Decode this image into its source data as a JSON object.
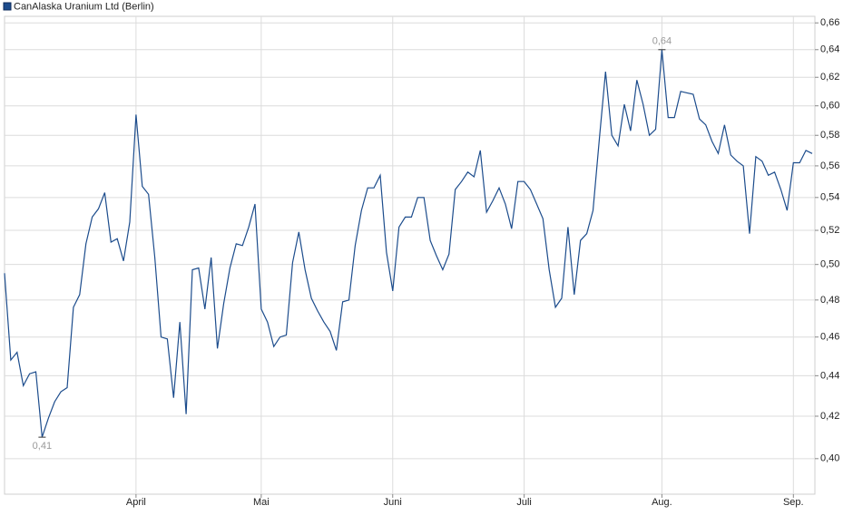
{
  "chart_data": {
    "type": "line",
    "series": [
      {
        "name": "CanAlaska Uranium Ltd (Berlin)",
        "color": "#1c4c8c",
        "values": [
          0.495,
          0.448,
          0.452,
          0.435,
          0.441,
          0.442,
          0.41,
          0.419,
          0.427,
          0.432,
          0.434,
          0.476,
          0.483,
          0.512,
          0.528,
          0.533,
          0.543,
          0.513,
          0.515,
          0.502,
          0.525,
          0.594,
          0.547,
          0.542,
          0.504,
          0.46,
          0.459,
          0.429,
          0.468,
          0.421,
          0.497,
          0.498,
          0.475,
          0.504,
          0.454,
          0.478,
          0.498,
          0.512,
          0.511,
          0.522,
          0.536,
          0.475,
          0.468,
          0.455,
          0.46,
          0.461,
          0.501,
          0.519,
          0.497,
          0.481,
          0.474,
          0.468,
          0.463,
          0.453,
          0.479,
          0.48,
          0.511,
          0.532,
          0.546,
          0.546,
          0.554,
          0.507,
          0.485,
          0.522,
          0.528,
          0.528,
          0.54,
          0.54,
          0.514,
          0.505,
          0.497,
          0.506,
          0.545,
          0.55,
          0.556,
          0.553,
          0.57,
          0.531,
          0.538,
          0.546,
          0.536,
          0.521,
          0.55,
          0.55,
          0.545,
          0.536,
          0.527,
          0.497,
          0.476,
          0.481,
          0.522,
          0.483,
          0.514,
          0.518,
          0.532,
          0.577,
          0.624,
          0.58,
          0.573,
          0.601,
          0.583,
          0.618,
          0.601,
          0.58,
          0.584,
          0.64,
          0.592,
          0.592,
          0.61,
          0.609,
          0.608,
          0.591,
          0.587,
          0.576,
          0.568,
          0.587,
          0.567,
          0.563,
          0.56,
          0.518,
          0.566,
          0.563,
          0.554,
          0.556,
          0.545,
          0.532,
          0.562,
          0.562,
          0.57,
          0.568
        ],
        "value_labels": [
          null,
          null,
          null,
          null,
          null,
          null,
          "0,41",
          null,
          null,
          null,
          null,
          null,
          null,
          null,
          null,
          null,
          null,
          null,
          null,
          null,
          null,
          null,
          null,
          null,
          null,
          null,
          null,
          null,
          null,
          null,
          null,
          null,
          null,
          null,
          null,
          null,
          null,
          null,
          null,
          null,
          null,
          null,
          null,
          null,
          null,
          null,
          null,
          null,
          null,
          null,
          null,
          null,
          null,
          null,
          null,
          null,
          null,
          null,
          null,
          null,
          null,
          null,
          null,
          null,
          null,
          null,
          null,
          null,
          null,
          null,
          null,
          null,
          null,
          null,
          null,
          null,
          null,
          null,
          null,
          null,
          null,
          null,
          null,
          null,
          null,
          null,
          null,
          null,
          null,
          null,
          null,
          null,
          null,
          null,
          null,
          null,
          null,
          null,
          null,
          null,
          null,
          null,
          null,
          null,
          null,
          "0,64",
          null,
          null,
          null,
          null,
          null,
          null,
          null,
          null,
          null,
          null,
          null,
          null,
          null,
          null,
          null,
          null,
          null,
          null,
          null,
          null,
          null,
          null,
          null,
          null
        ]
      }
    ],
    "categories": [
      null,
      null,
      null,
      null,
      null,
      null,
      null,
      null,
      null,
      null,
      null,
      null,
      null,
      null,
      null,
      null,
      null,
      null,
      null,
      null,
      null,
      "April",
      null,
      null,
      null,
      null,
      null,
      null,
      null,
      null,
      null,
      null,
      null,
      null,
      null,
      null,
      null,
      null,
      null,
      null,
      null,
      "Mai",
      null,
      null,
      null,
      null,
      null,
      null,
      null,
      null,
      null,
      null,
      null,
      null,
      null,
      null,
      null,
      null,
      null,
      null,
      null,
      null,
      "Juni",
      null,
      null,
      null,
      null,
      null,
      null,
      null,
      null,
      null,
      null,
      null,
      null,
      null,
      null,
      null,
      null,
      null,
      null,
      null,
      null,
      "Juli",
      null,
      null,
      null,
      null,
      null,
      null,
      null,
      null,
      null,
      null,
      null,
      null,
      null,
      null,
      null,
      null,
      null,
      null,
      null,
      null,
      null,
      "Aug.",
      null,
      null,
      null,
      null,
      null,
      null,
      null,
      null,
      null,
      null,
      null,
      null,
      null,
      null,
      null,
      null,
      null,
      null,
      null,
      null,
      "Sep.",
      null,
      null,
      null
    ],
    "ylim": [
      0.384,
      0.665
    ],
    "log_y": true,
    "grid": true,
    "yticks": [
      {
        "value": 0.4,
        "label": "0,40"
      },
      {
        "value": 0.42,
        "label": "0,42"
      },
      {
        "value": 0.44,
        "label": "0,44"
      },
      {
        "value": 0.46,
        "label": "0,46"
      },
      {
        "value": 0.48,
        "label": "0,48"
      },
      {
        "value": 0.5,
        "label": "0,50"
      },
      {
        "value": 0.52,
        "label": "0,52"
      },
      {
        "value": 0.54,
        "label": "0,54"
      },
      {
        "value": 0.56,
        "label": "0,56"
      },
      {
        "value": 0.58,
        "label": "0,58"
      },
      {
        "value": 0.6,
        "label": "0,60"
      },
      {
        "value": 0.62,
        "label": "0,62"
      },
      {
        "value": 0.64,
        "label": "0,64"
      },
      {
        "value": 0.66,
        "label": "0,66"
      }
    ]
  }
}
